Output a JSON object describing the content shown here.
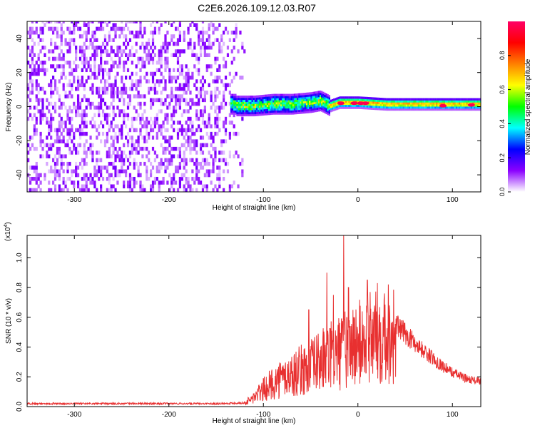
{
  "title": "C2E6.2026.109.12.03.R07",
  "chart_data": [
    {
      "type": "heatmap",
      "title": "C2E6.2026.109.12.03.R07",
      "xlabel": "Height of straight line (km)",
      "ylabel": "Frequency (Hz)",
      "xlim": [
        -350,
        130
      ],
      "ylim": [
        -50,
        50
      ],
      "x_ticks": [
        -300,
        -200,
        -100,
        0,
        100
      ],
      "x_tick_labels": [
        "-300",
        "-200",
        "-100",
        "0",
        "100"
      ],
      "y_ticks": [
        -40,
        -20,
        0,
        20,
        40
      ],
      "y_tick_labels": [
        "-40",
        "-20",
        "0",
        "20",
        "40"
      ],
      "noise_region_km": [
        -350,
        -120
      ],
      "signal_region_km": [
        -135,
        130
      ],
      "signal_center_hz": [
        {
          "x": -130,
          "hz": 0
        },
        {
          "x": -110,
          "hz": 0
        },
        {
          "x": -90,
          "hz": 1
        },
        {
          "x": -70,
          "hz": 1
        },
        {
          "x": -50,
          "hz": 2
        },
        {
          "x": -40,
          "hz": 3
        },
        {
          "x": -30,
          "hz": 0
        },
        {
          "x": -20,
          "hz": 2
        },
        {
          "x": 0,
          "hz": 2
        },
        {
          "x": 30,
          "hz": 1
        },
        {
          "x": 60,
          "hz": 1
        },
        {
          "x": 90,
          "hz": 1
        },
        {
          "x": 130,
          "hz": 1
        }
      ],
      "colorbar": {
        "label": "Normalized spectral amplitude",
        "range": [
          0,
          1
        ],
        "ticks": [
          0.0,
          0.2,
          0.4,
          0.6,
          0.8
        ],
        "tick_labels": [
          "0.0",
          "0.2",
          "0.4",
          "0.6",
          "0.8"
        ],
        "colormap_stops": [
          "#ffffff",
          "#8b00ff",
          "#0000ff",
          "#00ffff",
          "#00ff00",
          "#ffff00",
          "#ff8000",
          "#ff0000",
          "#ff0066"
        ]
      }
    },
    {
      "type": "line",
      "xlabel": "Height of straight line (km)",
      "ylabel": "SNR (10 * v/v)",
      "exponent_label": "(x10",
      "exponent_value": "4",
      "xlim": [
        -350,
        130
      ],
      "ylim": [
        0,
        1.15
      ],
      "x_ticks": [
        -300,
        -200,
        -100,
        0,
        100
      ],
      "x_tick_labels": [
        "-300",
        "-200",
        "-100",
        "0",
        "100"
      ],
      "y_ticks": [
        0.0,
        0.2,
        0.4,
        0.6,
        0.8,
        1.0
      ],
      "y_tick_labels": [
        "0.0",
        "0.2",
        "0.4",
        "0.6",
        "0.8",
        "1.0"
      ],
      "line_color": "#e83030",
      "series": [
        {
          "name": "SNR envelope",
          "points": [
            [
              -350,
              0.02
            ],
            [
              -250,
              0.02
            ],
            [
              -150,
              0.02
            ],
            [
              -120,
              0.025
            ],
            [
              -110,
              0.07
            ],
            [
              -100,
              0.13
            ],
            [
              -90,
              0.18
            ],
            [
              -80,
              0.22
            ],
            [
              -70,
              0.24
            ],
            [
              -60,
              0.28
            ],
            [
              -50,
              0.3
            ],
            [
              -40,
              0.35
            ],
            [
              -30,
              0.38
            ],
            [
              -20,
              0.41
            ],
            [
              -10,
              0.45
            ],
            [
              0,
              0.48
            ],
            [
              10,
              0.5
            ],
            [
              20,
              0.56
            ],
            [
              30,
              0.59
            ],
            [
              40,
              0.55
            ],
            [
              50,
              0.49
            ],
            [
              60,
              0.43
            ],
            [
              70,
              0.37
            ],
            [
              80,
              0.32
            ],
            [
              90,
              0.27
            ],
            [
              100,
              0.23
            ],
            [
              110,
              0.2
            ],
            [
              120,
              0.18
            ],
            [
              130,
              0.17
            ]
          ]
        }
      ],
      "peaks": [
        [
          -52,
          0.65
        ],
        [
          -33,
          0.9
        ],
        [
          -26,
          0.75
        ],
        [
          -15,
          1.15
        ],
        [
          -10,
          0.8
        ],
        [
          10,
          0.85
        ],
        [
          28,
          0.76
        ]
      ]
    }
  ]
}
